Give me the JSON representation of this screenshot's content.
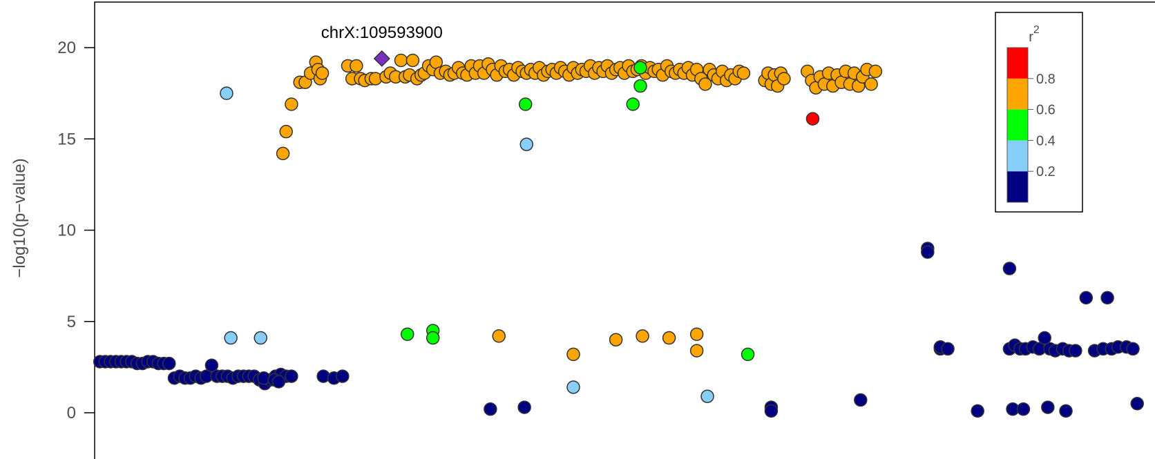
{
  "chart_data": {
    "type": "scatter",
    "ylabel": "−log10(p−value)",
    "ylim": [
      -0.6,
      22.5
    ],
    "xlim": [
      0,
      100
    ],
    "yticks": [
      0,
      5,
      10,
      15,
      20
    ],
    "annotation": "chrX:109593900",
    "lead_snp": {
      "x": 27.0,
      "y": 19.4
    },
    "legend": {
      "title": "r",
      "title_sup": "2",
      "colors": [
        "#000080",
        "#87CEFA",
        "#00FF00",
        "#FFA500",
        "#FF0000"
      ],
      "labels": [
        "0.2",
        "0.4",
        "0.6",
        "0.8"
      ]
    },
    "series": [
      {
        "name": "0.8-1",
        "color": "#FF0000",
        "points": [
          [
            67.5,
            16.1
          ]
        ]
      },
      {
        "name": "0.6-0.8",
        "color": "#FFA500",
        "points": [
          [
            17.7,
            14.2
          ],
          [
            18.0,
            15.4
          ],
          [
            18.5,
            16.9
          ],
          [
            19.3,
            18.1
          ],
          [
            19.8,
            18.1
          ],
          [
            20.3,
            18.6
          ],
          [
            20.8,
            19.2
          ],
          [
            21.0,
            18.8
          ],
          [
            21.2,
            18.3
          ],
          [
            21.4,
            18.6
          ],
          [
            23.8,
            19.0
          ],
          [
            24.2,
            18.3
          ],
          [
            24.6,
            19.0
          ],
          [
            25.0,
            18.3
          ],
          [
            25.4,
            18.2
          ],
          [
            26.0,
            18.3
          ],
          [
            26.4,
            18.3
          ],
          [
            27.4,
            18.4
          ],
          [
            27.8,
            18.6
          ],
          [
            28.3,
            18.4
          ],
          [
            28.8,
            19.3
          ],
          [
            29.2,
            18.4
          ],
          [
            29.6,
            18.5
          ],
          [
            29.9,
            19.3
          ],
          [
            30.3,
            18.3
          ],
          [
            30.7,
            18.5
          ],
          [
            31.0,
            18.6
          ],
          [
            31.4,
            19.0
          ],
          [
            31.8,
            18.8
          ],
          [
            32.1,
            19.2
          ],
          [
            32.5,
            18.6
          ],
          [
            33.0,
            18.7
          ],
          [
            33.4,
            18.5
          ],
          [
            33.8,
            18.6
          ],
          [
            34.2,
            18.9
          ],
          [
            34.6,
            18.6
          ],
          [
            35.0,
            18.5
          ],
          [
            35.4,
            19.0
          ],
          [
            35.8,
            18.6
          ],
          [
            36.2,
            19.0
          ],
          [
            36.6,
            18.6
          ],
          [
            37.0,
            19.1
          ],
          [
            37.4,
            18.8
          ],
          [
            37.8,
            18.5
          ],
          [
            38.2,
            19.0
          ],
          [
            38.6,
            18.7
          ],
          [
            39.0,
            18.8
          ],
          [
            39.4,
            18.5
          ],
          [
            39.8,
            18.9
          ],
          [
            40.2,
            18.7
          ],
          [
            40.6,
            18.6
          ],
          [
            41.0,
            18.8
          ],
          [
            41.4,
            18.6
          ],
          [
            41.8,
            18.9
          ],
          [
            42.2,
            18.5
          ],
          [
            42.6,
            18.7
          ],
          [
            43.0,
            18.8
          ],
          [
            43.4,
            18.6
          ],
          [
            43.8,
            18.9
          ],
          [
            44.2,
            18.7
          ],
          [
            44.6,
            18.5
          ],
          [
            45.0,
            18.9
          ],
          [
            45.4,
            18.6
          ],
          [
            45.8,
            18.8
          ],
          [
            46.2,
            18.7
          ],
          [
            46.6,
            19.0
          ],
          [
            47.0,
            18.6
          ],
          [
            47.4,
            18.9
          ],
          [
            47.8,
            18.7
          ],
          [
            48.2,
            19.0
          ],
          [
            48.6,
            18.6
          ],
          [
            49.0,
            18.8
          ],
          [
            49.4,
            18.9
          ],
          [
            49.8,
            18.6
          ],
          [
            50.2,
            19.0
          ],
          [
            50.6,
            18.7
          ],
          [
            51.0,
            18.8
          ],
          [
            51.4,
            19.0
          ],
          [
            51.8,
            18.6
          ],
          [
            52.2,
            18.9
          ],
          [
            52.6,
            18.7
          ],
          [
            53.0,
            18.8
          ],
          [
            53.4,
            18.5
          ],
          [
            53.8,
            19.0
          ],
          [
            54.2,
            18.7
          ],
          [
            54.6,
            18.6
          ],
          [
            55.0,
            18.8
          ],
          [
            55.4,
            18.6
          ],
          [
            55.8,
            18.9
          ],
          [
            56.2,
            18.5
          ],
          [
            56.6,
            18.8
          ],
          [
            57.0,
            18.3
          ],
          [
            57.4,
            18.0
          ],
          [
            57.8,
            18.8
          ],
          [
            58.2,
            18.5
          ],
          [
            58.6,
            18.3
          ],
          [
            59.0,
            18.7
          ],
          [
            59.4,
            18.2
          ],
          [
            59.8,
            18.5
          ],
          [
            60.2,
            18.3
          ],
          [
            60.6,
            18.7
          ],
          [
            61.0,
            18.6
          ],
          [
            63.0,
            18.2
          ],
          [
            63.3,
            18.6
          ],
          [
            63.6,
            18.0
          ],
          [
            63.9,
            18.5
          ],
          [
            64.2,
            17.9
          ],
          [
            64.5,
            18.6
          ],
          [
            64.8,
            18.3
          ],
          [
            67.0,
            18.7
          ],
          [
            67.4,
            18.2
          ],
          [
            67.8,
            17.8
          ],
          [
            68.2,
            18.4
          ],
          [
            68.6,
            18.0
          ],
          [
            69.0,
            18.6
          ],
          [
            69.4,
            17.9
          ],
          [
            69.8,
            18.5
          ],
          [
            70.2,
            18.1
          ],
          [
            70.6,
            18.7
          ],
          [
            71.0,
            18.0
          ],
          [
            71.4,
            18.6
          ],
          [
            71.8,
            17.9
          ],
          [
            72.2,
            18.4
          ],
          [
            72.6,
            18.8
          ],
          [
            73.0,
            18.0
          ],
          [
            73.4,
            18.7
          ],
          [
            38.0,
            4.2
          ],
          [
            49.0,
            4.0
          ],
          [
            51.5,
            4.2
          ],
          [
            54.0,
            4.1
          ],
          [
            56.6,
            4.3
          ],
          [
            56.6,
            3.4
          ],
          [
            45.0,
            3.2
          ]
        ]
      },
      {
        "name": "0.4-0.6",
        "color": "#00FF00",
        "points": [
          [
            29.4,
            4.3
          ],
          [
            31.8,
            4.5
          ],
          [
            31.8,
            4.1
          ],
          [
            40.5,
            16.9
          ],
          [
            50.6,
            16.9
          ],
          [
            51.3,
            17.9
          ],
          [
            51.3,
            18.9
          ],
          [
            61.4,
            3.2
          ]
        ]
      },
      {
        "name": "0.2-0.4",
        "color": "#87CEFA",
        "points": [
          [
            12.4,
            17.5
          ],
          [
            12.8,
            4.1
          ],
          [
            15.6,
            4.1
          ],
          [
            40.6,
            14.7
          ],
          [
            45.0,
            1.4
          ],
          [
            57.6,
            0.9
          ]
        ]
      },
      {
        "name": "0-0.2",
        "color": "#000080",
        "points": [
          [
            0.5,
            2.8
          ],
          [
            1.0,
            2.8
          ],
          [
            1.5,
            2.8
          ],
          [
            2.0,
            2.8
          ],
          [
            2.5,
            2.8
          ],
          [
            3.0,
            2.8
          ],
          [
            3.5,
            2.8
          ],
          [
            4.0,
            2.7
          ],
          [
            4.5,
            2.7
          ],
          [
            5.0,
            2.8
          ],
          [
            5.5,
            2.8
          ],
          [
            6.0,
            2.7
          ],
          [
            6.5,
            2.7
          ],
          [
            7.0,
            2.7
          ],
          [
            7.5,
            1.9
          ],
          [
            8.0,
            2.0
          ],
          [
            8.5,
            1.9
          ],
          [
            9.0,
            1.9
          ],
          [
            9.5,
            2.0
          ],
          [
            10.0,
            1.9
          ],
          [
            10.5,
            2.0
          ],
          [
            11.0,
            2.6
          ],
          [
            11.5,
            2.0
          ],
          [
            12.0,
            2.0
          ],
          [
            12.5,
            2.0
          ],
          [
            13.0,
            1.9
          ],
          [
            13.5,
            2.0
          ],
          [
            14.0,
            2.0
          ],
          [
            14.5,
            2.0
          ],
          [
            15.0,
            2.0
          ],
          [
            15.5,
            1.8
          ],
          [
            16.0,
            1.6
          ],
          [
            16.5,
            1.8
          ],
          [
            17.0,
            2.0
          ],
          [
            17.5,
            2.1
          ],
          [
            18.0,
            2.0
          ],
          [
            15.9,
            1.9
          ],
          [
            16.9,
            1.8
          ],
          [
            17.3,
            1.7
          ],
          [
            18.5,
            2.0
          ],
          [
            21.5,
            2.0
          ],
          [
            22.5,
            1.9
          ],
          [
            23.3,
            2.0
          ],
          [
            37.2,
            0.2
          ],
          [
            40.4,
            0.3
          ],
          [
            63.6,
            0.3
          ],
          [
            63.6,
            0.1
          ],
          [
            72.0,
            0.7
          ],
          [
            78.3,
            9.0
          ],
          [
            78.3,
            8.8
          ],
          [
            86.0,
            7.9
          ],
          [
            79.5,
            3.5
          ],
          [
            79.5,
            3.6
          ],
          [
            80.2,
            3.5
          ],
          [
            83.0,
            0.1
          ],
          [
            86.0,
            3.5
          ],
          [
            86.3,
            0.2
          ],
          [
            86.5,
            3.7
          ],
          [
            87.0,
            3.5
          ],
          [
            87.3,
            0.2
          ],
          [
            87.5,
            3.5
          ],
          [
            88.2,
            3.6
          ],
          [
            88.8,
            3.5
          ],
          [
            89.3,
            4.1
          ],
          [
            89.6,
            0.3
          ],
          [
            89.8,
            3.5
          ],
          [
            90.3,
            3.4
          ],
          [
            91.0,
            3.5
          ],
          [
            91.3,
            0.1
          ],
          [
            91.6,
            3.4
          ],
          [
            92.2,
            3.4
          ],
          [
            93.2,
            6.3
          ],
          [
            94.0,
            3.4
          ],
          [
            94.8,
            3.5
          ],
          [
            95.2,
            6.3
          ],
          [
            95.6,
            3.5
          ],
          [
            96.2,
            3.6
          ],
          [
            97.0,
            3.6
          ],
          [
            97.6,
            3.5
          ],
          [
            98.0,
            0.5
          ]
        ]
      }
    ]
  }
}
